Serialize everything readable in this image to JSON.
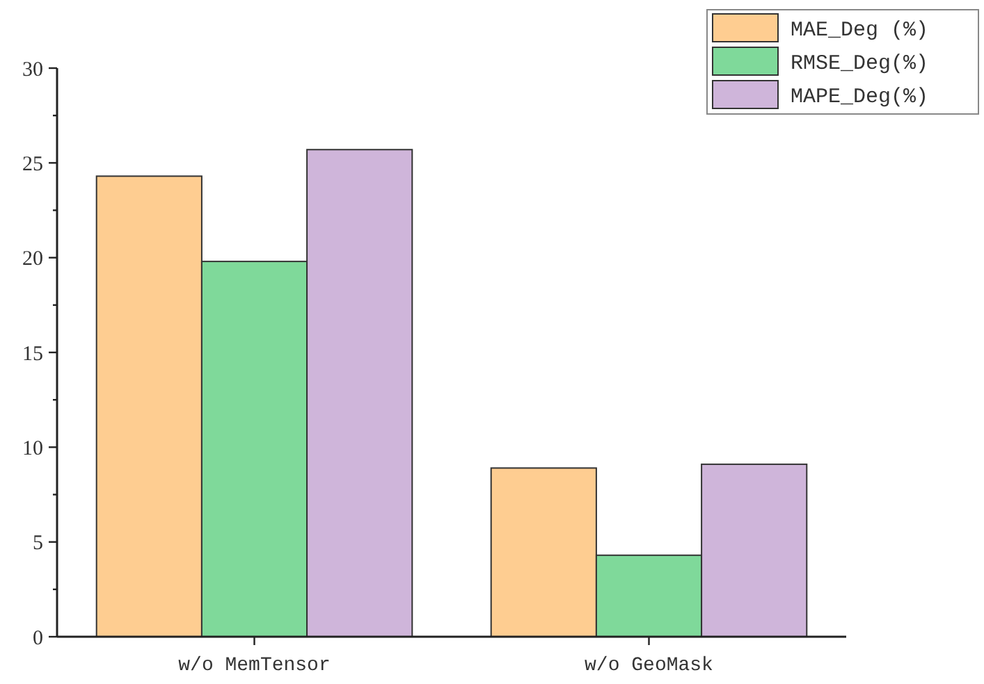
{
  "chart_data": {
    "type": "bar",
    "categories": [
      "w/o MemTensor",
      "w/o GeoMask"
    ],
    "series": [
      {
        "name": "MAE_Deg (%)",
        "color": "#fecd91",
        "values": [
          24.3,
          8.9
        ]
      },
      {
        "name": "RMSE_Deg(%)",
        "color": "#7fd99a",
        "values": [
          19.8,
          4.3
        ]
      },
      {
        "name": "MAPE_Deg(%)",
        "color": "#cfb5da",
        "values": [
          25.7,
          9.1
        ]
      }
    ],
    "ylim": [
      0,
      30
    ],
    "yticks": [
      0,
      {
        "value": 2.5,
        "label": null
      },
      5,
      {
        "value": 7.5,
        "label": null
      },
      10,
      {
        "value": 12.5,
        "label": null
      },
      15,
      {
        "value": 17.5,
        "label": null
      },
      20,
      {
        "value": 22.5,
        "label": null
      },
      25,
      {
        "value": 27.5,
        "label": null
      },
      30
    ],
    "grid": false,
    "legend": "top right"
  }
}
